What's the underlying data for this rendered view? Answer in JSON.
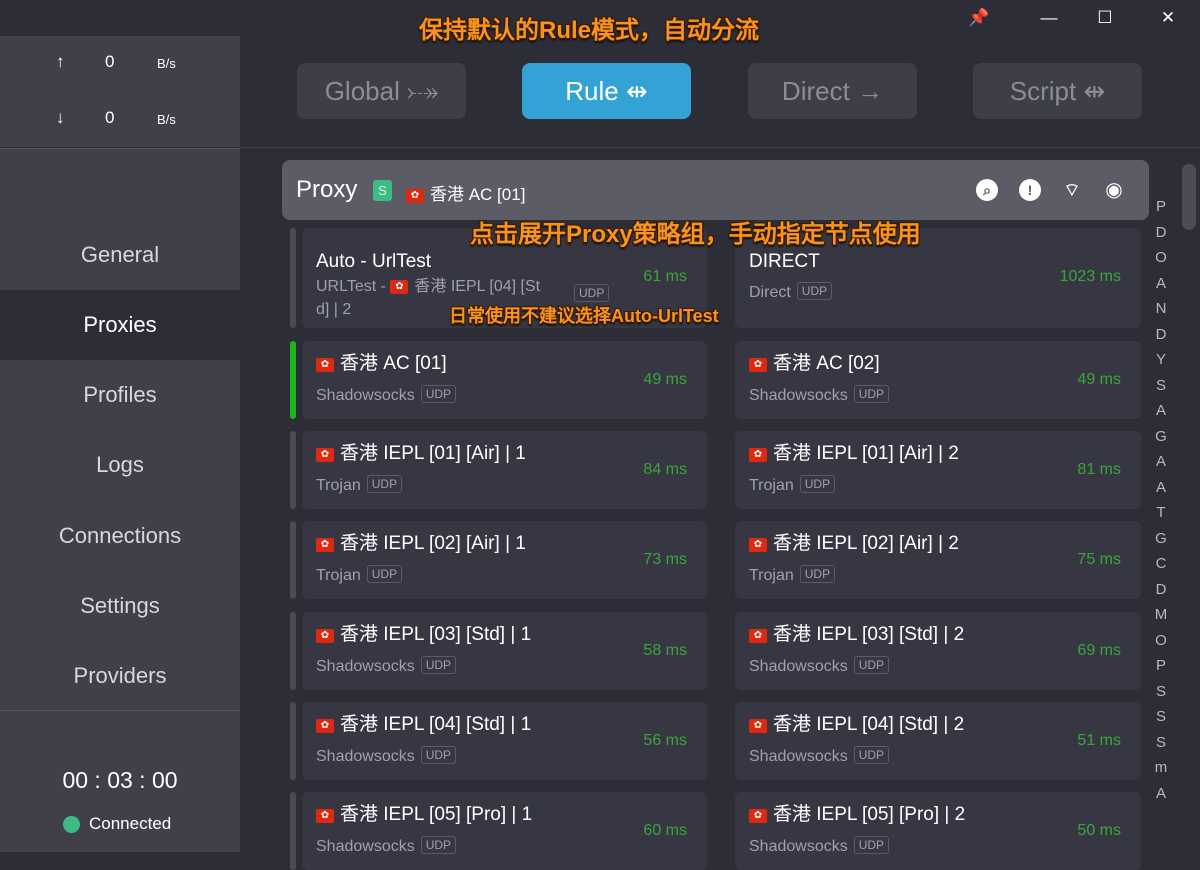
{
  "window": {
    "pin_icon": "pin-icon",
    "minimize": "—",
    "maximize": "☐",
    "close": "✕"
  },
  "traffic": {
    "up_arrow": "↑",
    "up_value": "0",
    "up_unit": "B/s",
    "down_arrow": "↓",
    "down_value": "0",
    "down_unit": "B/s"
  },
  "nav": [
    "General",
    "Proxies",
    "Profiles",
    "Logs",
    "Connections",
    "Settings",
    "Providers"
  ],
  "status": {
    "timer": "00 : 03 : 00",
    "state": "Connected",
    "color": "#3dbb84"
  },
  "modes": [
    {
      "label": "Global",
      "icon": "⤐"
    },
    {
      "label": "Rule",
      "icon": "⇹"
    },
    {
      "label": "Direct",
      "icon": "→"
    },
    {
      "label": "Script",
      "icon": "⇹"
    }
  ],
  "active_mode": "Rule",
  "group": {
    "name": "Proxy",
    "type_badge": "S",
    "selected": "香港 AC [01]"
  },
  "annotations": {
    "top": "保持默认的Rule模式，自动分流",
    "group": "点击展开Proxy策略组，手动指定节点使用",
    "auto": "日常使用不建议选择Auto-UrlTest"
  },
  "proxies": [
    {
      "name": "Auto - UrlTest",
      "type": "URLTest - ",
      "sub_flag": true,
      "sub_tail": "香港 IEPL [04] [St",
      "sub_tail2": "d] | 2",
      "udp": "UDP",
      "delay": "61 ms"
    },
    {
      "name": "DIRECT",
      "type": "Direct",
      "udp": "UDP",
      "delay": "1023 ms"
    },
    {
      "name": "香港 AC [01]",
      "flag": true,
      "type": "Shadowsocks",
      "udp": "UDP",
      "delay": "49 ms",
      "selected": true
    },
    {
      "name": "香港 AC [02]",
      "flag": true,
      "type": "Shadowsocks",
      "udp": "UDP",
      "delay": "49 ms"
    },
    {
      "name": "香港 IEPL [01] [Air] | 1",
      "flag": true,
      "type": "Trojan",
      "udp": "UDP",
      "delay": "84 ms"
    },
    {
      "name": "香港 IEPL [01] [Air] | 2",
      "flag": true,
      "type": "Trojan",
      "udp": "UDP",
      "delay": "81 ms"
    },
    {
      "name": "香港 IEPL [02] [Air] | 1",
      "flag": true,
      "type": "Trojan",
      "udp": "UDP",
      "delay": "73 ms"
    },
    {
      "name": "香港 IEPL [02] [Air] | 2",
      "flag": true,
      "type": "Trojan",
      "udp": "UDP",
      "delay": "75 ms"
    },
    {
      "name": "香港 IEPL [03] [Std] | 1",
      "flag": true,
      "type": "Shadowsocks",
      "udp": "UDP",
      "delay": "58 ms"
    },
    {
      "name": "香港 IEPL [03] [Std] | 2",
      "flag": true,
      "type": "Shadowsocks",
      "udp": "UDP",
      "delay": "69 ms"
    },
    {
      "name": "香港 IEPL [04] [Std] | 1",
      "flag": true,
      "type": "Shadowsocks",
      "udp": "UDP",
      "delay": "56 ms"
    },
    {
      "name": "香港 IEPL [04] [Std] | 2",
      "flag": true,
      "type": "Shadowsocks",
      "udp": "UDP",
      "delay": "51 ms"
    },
    {
      "name": "香港 IEPL [05] [Pro] | 1",
      "flag": true,
      "type": "Shadowsocks",
      "udp": "UDP",
      "delay": "60 ms"
    },
    {
      "name": "香港 IEPL [05] [Pro] | 2",
      "flag": true,
      "type": "Shadowsocks",
      "udp": "UDP",
      "delay": "50 ms"
    }
  ],
  "index_letters": [
    "P",
    "D",
    "O",
    "A",
    "N",
    "D",
    "Y",
    "S",
    "A",
    "G",
    "A",
    "A",
    "T",
    "G",
    "C",
    "D",
    "M",
    "O",
    "P",
    "S",
    "S",
    "S",
    "m",
    "A"
  ]
}
